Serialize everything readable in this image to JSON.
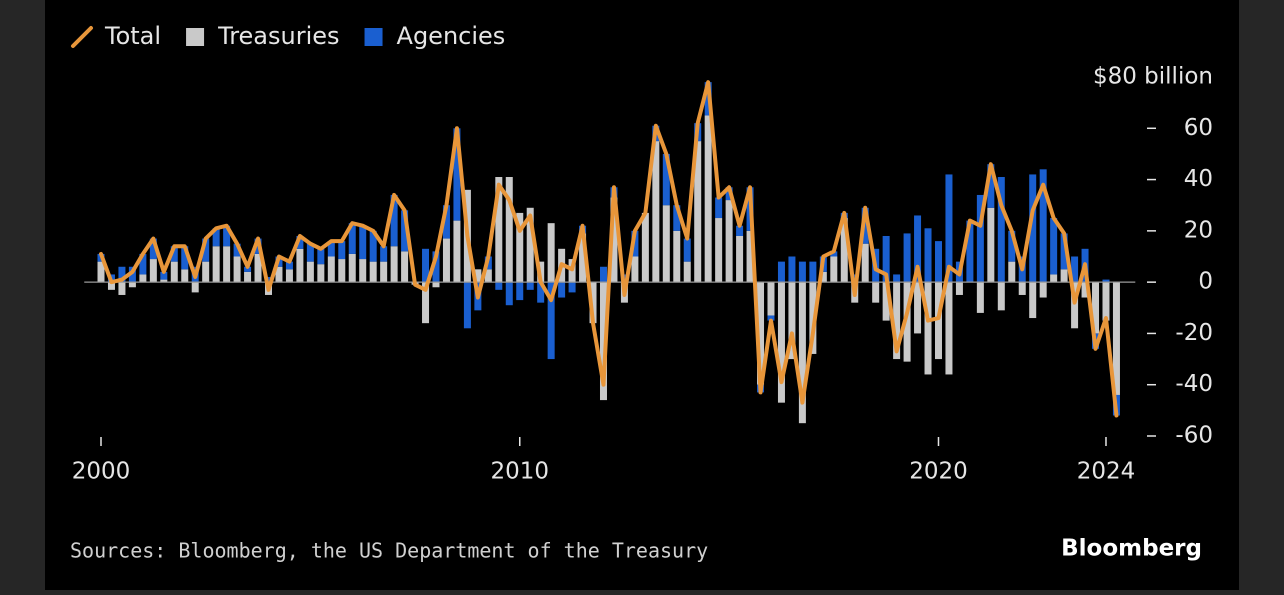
{
  "chart_data": {
    "type": "bar",
    "stacked": true,
    "legend": "top-left",
    "grid": false,
    "x": [
      2000,
      2000.25,
      2000.5,
      2000.75,
      2001,
      2001.25,
      2001.5,
      2001.75,
      2002,
      2002.25,
      2002.5,
      2002.75,
      2003,
      2003.25,
      2003.5,
      2003.75,
      2004,
      2004.25,
      2004.5,
      2004.75,
      2005,
      2005.25,
      2005.5,
      2005.75,
      2006,
      2006.25,
      2006.5,
      2006.75,
      2007,
      2007.25,
      2007.5,
      2007.75,
      2008,
      2008.25,
      2008.5,
      2008.75,
      2009,
      2009.25,
      2009.5,
      2009.75,
      2010,
      2010.25,
      2010.5,
      2010.75,
      2011,
      2011.25,
      2011.5,
      2011.75,
      2012,
      2012.25,
      2012.5,
      2012.75,
      2013,
      2013.25,
      2013.5,
      2013.75,
      2014,
      2014.25,
      2014.5,
      2014.75,
      2015,
      2015.25,
      2015.5,
      2015.75,
      2016,
      2016.25,
      2016.5,
      2016.75,
      2017,
      2017.25,
      2017.5,
      2017.75,
      2018,
      2018.25,
      2018.5,
      2018.75,
      2019,
      2019.25,
      2019.5,
      2019.75,
      2020,
      2020.25,
      2020.5,
      2020.75,
      2021,
      2021.25,
      2021.5,
      2021.75,
      2022,
      2022.25,
      2022.5,
      2022.75,
      2023,
      2023.25,
      2023.5,
      2023.75,
      2024,
      2024.25
    ],
    "series": [
      {
        "name": "Total",
        "type": "line",
        "color": "#e8963a",
        "values": [
          11,
          0,
          1,
          4,
          11,
          17,
          4,
          14,
          14,
          2,
          17,
          21,
          22,
          15,
          6,
          17,
          -3,
          10,
          8,
          18,
          15,
          13,
          16,
          16,
          23,
          22,
          20,
          14,
          34,
          28,
          -1,
          -3,
          10,
          30,
          60,
          18,
          -6,
          10,
          38,
          32,
          20,
          26,
          0,
          -7,
          7,
          5,
          22,
          -16,
          -40,
          37,
          -5,
          20,
          27,
          61,
          50,
          30,
          17,
          62,
          78,
          33,
          37,
          22,
          37,
          -43,
          -15,
          -39,
          -20,
          -47,
          -20,
          10,
          12,
          27,
          -5,
          29,
          5,
          3,
          -27,
          -12,
          6,
          -15,
          -14,
          6,
          3,
          24,
          22,
          46,
          30,
          20,
          5,
          28,
          38,
          25,
          19,
          -8,
          7,
          -26,
          -14,
          -52
        ]
      },
      {
        "name": "Treasuries",
        "type": "bar",
        "color": "#c9c9c9",
        "values": [
          8,
          -3,
          -5,
          -2,
          3,
          9,
          1,
          8,
          5,
          -4,
          8,
          14,
          14,
          10,
          4,
          11,
          -5,
          6,
          5,
          13,
          8,
          7,
          10,
          9,
          11,
          9,
          8,
          8,
          14,
          12,
          -1,
          -16,
          -2,
          17,
          24,
          36,
          5,
          5,
          41,
          41,
          27,
          29,
          8,
          23,
          13,
          9,
          19,
          -16,
          -46,
          33,
          -8,
          10,
          27,
          55,
          30,
          20,
          8,
          55,
          65,
          25,
          32,
          18,
          20,
          -40,
          -13,
          -47,
          -30,
          -55,
          -28,
          4,
          10,
          25,
          -8,
          15,
          -8,
          -15,
          -30,
          -31,
          -20,
          -36,
          -30,
          -36,
          -5,
          0,
          -12,
          29,
          -11,
          8,
          -5,
          -14,
          -6,
          3,
          5,
          -18,
          -6,
          -20,
          -15,
          -44
        ]
      },
      {
        "name": "Agencies",
        "type": "bar",
        "color": "#1a5fd0",
        "values": [
          3,
          3,
          6,
          6,
          8,
          8,
          3,
          6,
          9,
          6,
          9,
          7,
          8,
          5,
          2,
          6,
          2,
          4,
          3,
          5,
          7,
          6,
          6,
          7,
          12,
          13,
          12,
          6,
          20,
          16,
          0,
          13,
          12,
          13,
          36,
          -18,
          -11,
          5,
          -3,
          -9,
          -7,
          -3,
          -8,
          -30,
          -6,
          -4,
          3,
          0,
          6,
          4,
          3,
          10,
          0,
          6,
          20,
          10,
          9,
          7,
          13,
          8,
          5,
          4,
          17,
          -3,
          -2,
          8,
          10,
          8,
          8,
          6,
          2,
          2,
          3,
          14,
          13,
          18,
          3,
          19,
          26,
          21,
          16,
          42,
          8,
          24,
          34,
          17,
          41,
          12,
          10,
          42,
          44,
          22,
          14,
          10,
          13,
          -6,
          1,
          -8
        ]
      }
    ],
    "xlim": [
      1999.6,
      2024.7
    ],
    "xticks": [
      2000,
      2010,
      2020,
      2024
    ],
    "ylim": [
      -60,
      80
    ],
    "yticks": [
      {
        "value": 80,
        "label": "$80 billion"
      },
      60,
      40,
      20,
      0,
      -20,
      -40,
      -60
    ],
    "source": "Sources: Bloomberg, the US Department of the Treasury",
    "logo": "Bloomberg"
  }
}
